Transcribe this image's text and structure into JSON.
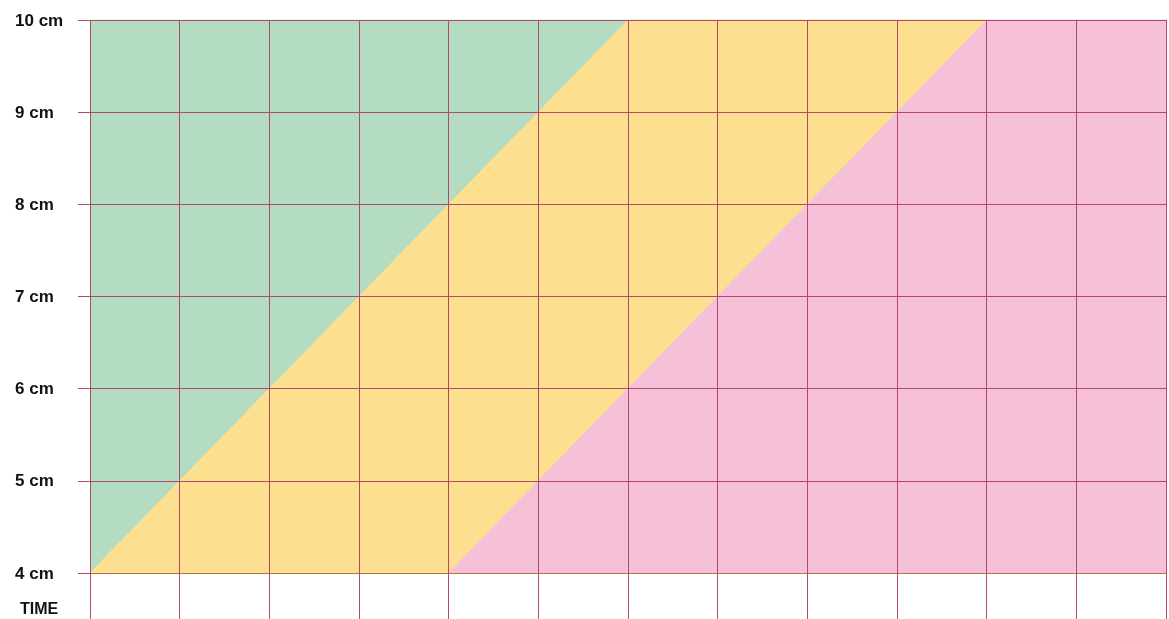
{
  "chart_data": {
    "type": "area",
    "xlabel": "TIME",
    "categories": [
      null,
      null,
      null,
      null,
      null,
      null,
      null,
      null,
      null,
      null,
      null,
      null,
      null
    ],
    "ylim": [
      4,
      10
    ],
    "yticks": [
      {
        "value": 4,
        "label": "4 cm"
      },
      {
        "value": 5,
        "label": "5 cm"
      },
      {
        "value": 6,
        "label": "6 cm"
      },
      {
        "value": 7,
        "label": "7 cm"
      },
      {
        "value": 8,
        "label": "8 cm"
      },
      {
        "value": 9,
        "label": "9 cm"
      },
      {
        "value": 10,
        "label": "10 cm"
      }
    ],
    "grid": true,
    "series": [
      {
        "color": "#b3dcc3",
        "values": [
          10,
          10,
          10,
          10,
          10,
          10,
          10,
          10,
          10,
          10,
          10,
          10,
          10
        ]
      },
      {
        "color": "#fde08f",
        "values": [
          4,
          5,
          6,
          7,
          8,
          9,
          10,
          10,
          10,
          10,
          10,
          null,
          null
        ]
      },
      {
        "color": "#f5c0d8",
        "values": [
          null,
          null,
          null,
          null,
          4,
          5,
          6,
          7,
          8,
          9,
          10,
          10,
          10
        ]
      }
    ]
  }
}
